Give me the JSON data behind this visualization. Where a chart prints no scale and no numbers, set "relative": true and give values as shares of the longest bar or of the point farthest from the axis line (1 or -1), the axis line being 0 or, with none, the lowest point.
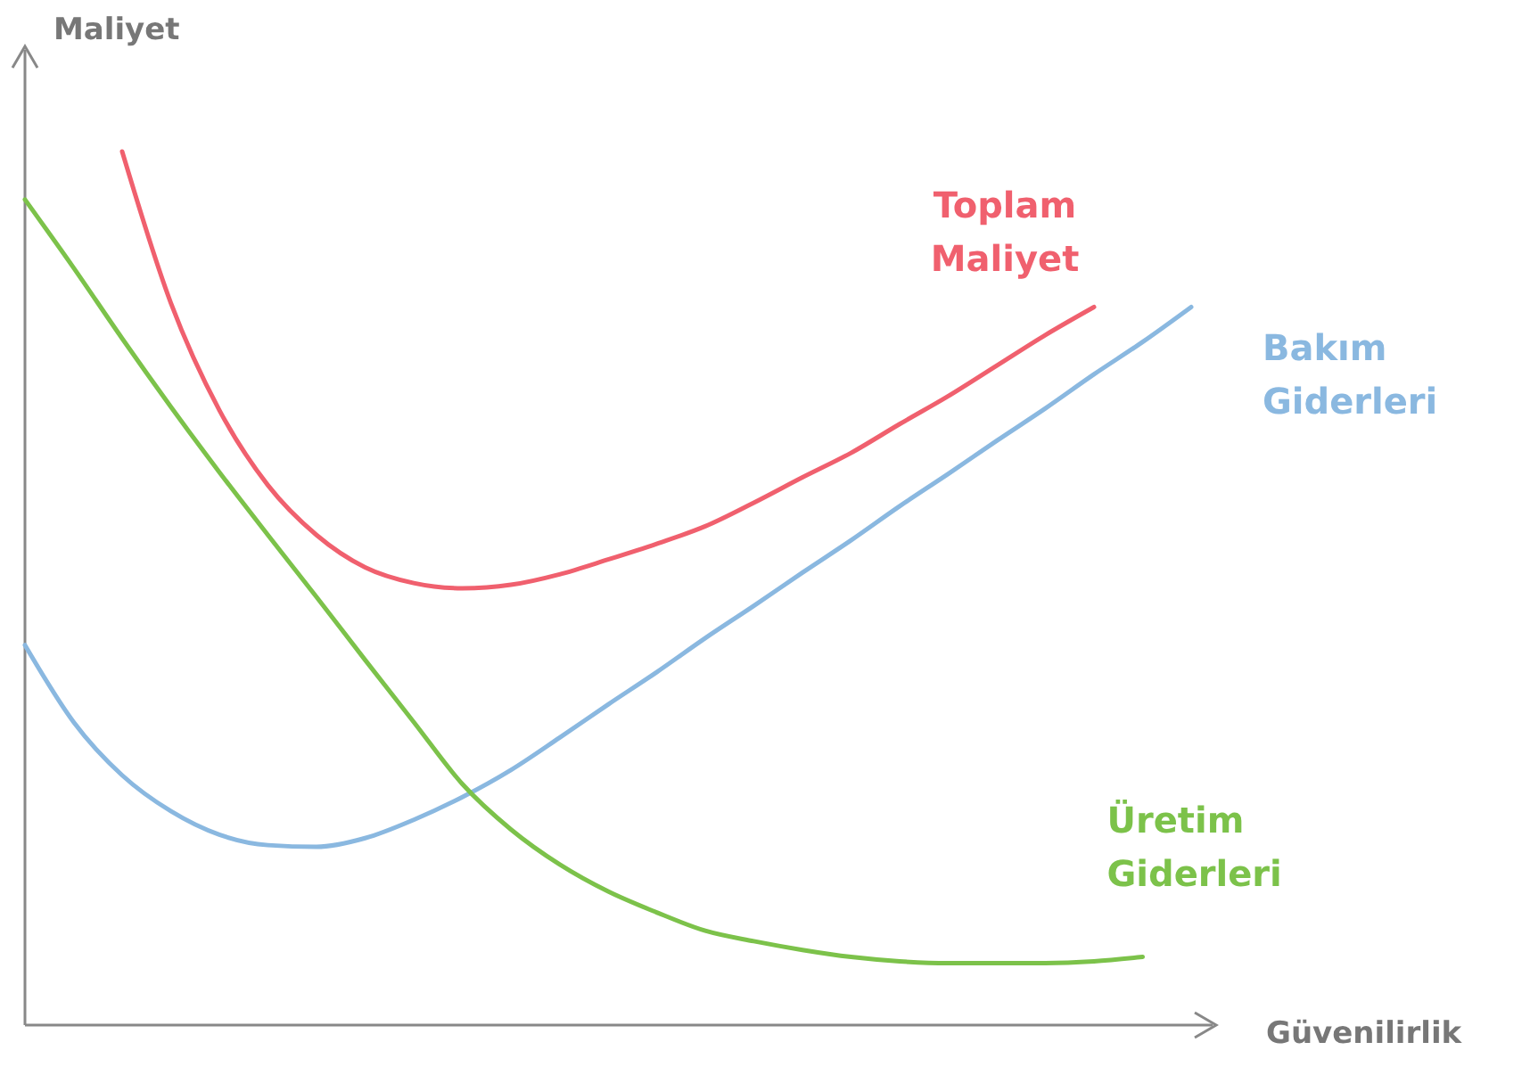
{
  "chart_data": {
    "type": "line",
    "relative": true,
    "xlabel": "Güvenilirlik",
    "ylabel": "Maliyet",
    "marker": "none",
    "line_style": "solid",
    "categories": [
      null,
      null,
      null,
      null,
      null,
      null,
      null,
      null,
      null,
      null,
      null,
      null,
      null,
      null,
      null,
      null,
      null,
      null,
      null,
      null,
      null,
      null,
      null,
      null,
      null
    ],
    "series": [
      {
        "name": "Toplam Maliyet",
        "color": "#f0606e",
        "values": [
          null,
          null,
          1,
          0.827,
          0.704,
          0.618,
          0.561,
          0.524,
          0.506,
          0.5,
          0.504,
          0.516,
          0.533,
          0.551,
          0.571,
          0.598,
          0.627,
          0.655,
          0.688,
          0.72,
          0.755,
          0.79,
          0.822,
          null,
          null
        ]
      },
      {
        "name": "Bakım Giderleri",
        "color": "#8ab8e0",
        "values": [
          0.435,
          0.347,
          0.286,
          0.245,
          0.218,
          0.206,
          0.204,
          0.214,
          0.235,
          0.261,
          0.292,
          0.329,
          0.367,
          0.404,
          0.443,
          0.48,
          0.518,
          0.555,
          0.594,
          0.631,
          0.669,
          0.706,
          0.745,
          0.782,
          0.822
        ]
      },
      {
        "name": "Üretim Giderleri",
        "color": "#7cc24a",
        "values": [
          0.945,
          0.867,
          0.786,
          0.708,
          0.633,
          0.561,
          0.49,
          0.418,
          0.347,
          0.276,
          0.224,
          0.184,
          0.153,
          0.129,
          0.108,
          0.096,
          0.086,
          0.078,
          0.073,
          0.071,
          0.071,
          0.071,
          0.073,
          0.078,
          null
        ]
      }
    ]
  }
}
